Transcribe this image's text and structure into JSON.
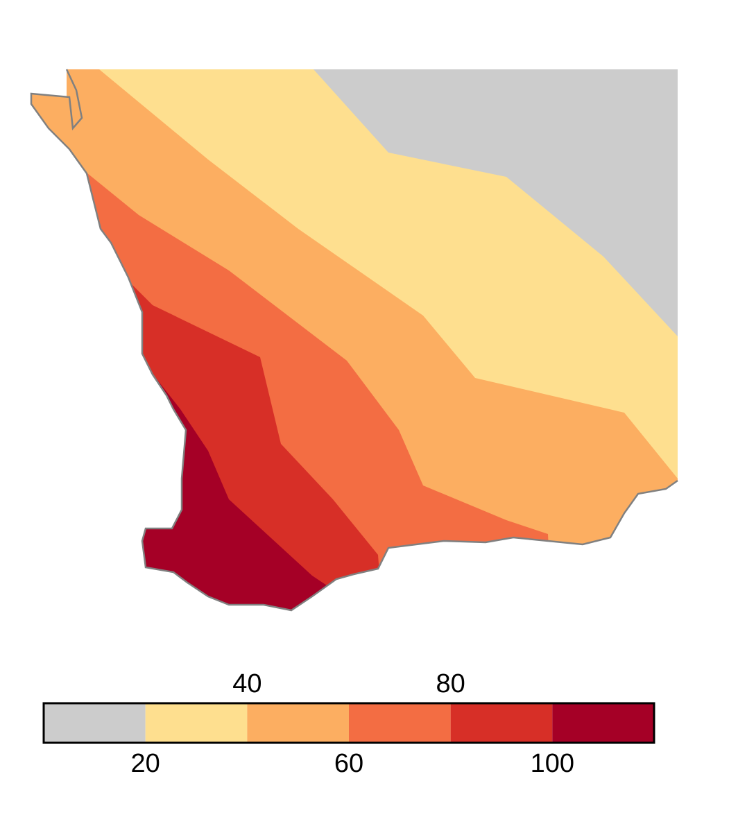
{
  "chart_data": {
    "type": "map",
    "colorbar": {
      "lim": [
        0,
        120
      ],
      "ticks": [
        20,
        40,
        60,
        80,
        100
      ],
      "colors": [
        "#cccccc",
        "#fedf8f",
        "#fcae61",
        "#f36d43",
        "#d72f27",
        "#a50026"
      ]
    },
    "coastline_color": "#808080"
  }
}
